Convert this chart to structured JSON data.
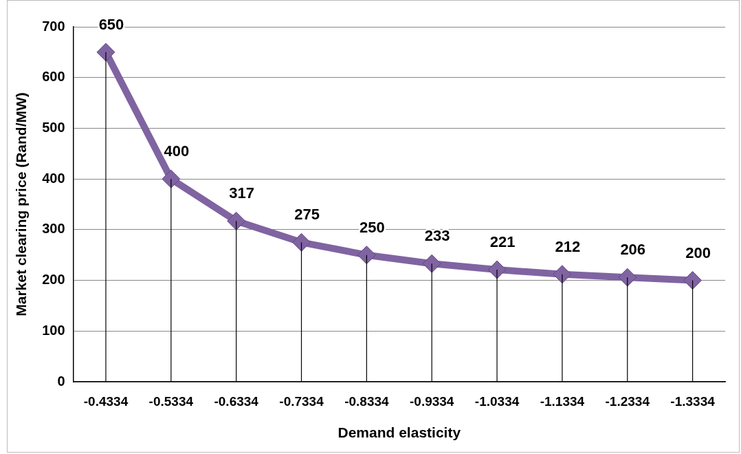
{
  "chart_data": {
    "type": "line",
    "xlabel": "Demand elasticity",
    "ylabel": "Market clearing price (Rand/MW)",
    "categories": [
      "-0.4334",
      "-0.5334",
      "-0.6334",
      "-0.7334",
      "-0.8334",
      "-0.9334",
      "-1.0334",
      "-1.1334",
      "-1.2334",
      "-1.3334"
    ],
    "series": [
      {
        "color": "#8064a2",
        "values": [
          650,
          400,
          317,
          275,
          250,
          233,
          221,
          212,
          206,
          200
        ],
        "errors": [
          [
            650,
            0
          ],
          [
            400,
            0
          ],
          [
            317,
            0
          ],
          [
            275,
            0
          ],
          [
            250,
            0
          ],
          [
            233,
            0
          ],
          [
            221,
            0
          ],
          [
            212,
            0
          ],
          [
            206,
            0
          ],
          [
            200,
            0
          ]
        ]
      }
    ],
    "ylim": [
      0,
      700
    ],
    "yticks": [
      0,
      100,
      200,
      300,
      400,
      500,
      600,
      700
    ],
    "grid": "y",
    "legend": false,
    "marker": "diamond",
    "line_style": "solid",
    "data_labels": true
  }
}
